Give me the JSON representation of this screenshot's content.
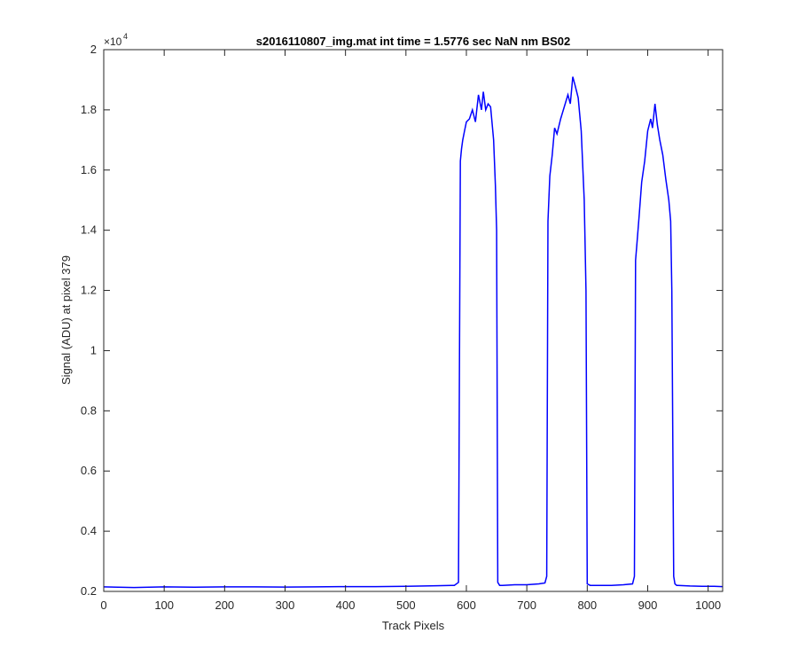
{
  "chart_data": {
    "type": "line",
    "title": "s2016110807_img.mat int time = 1.5776 sec  NaN nm BS02",
    "xlabel": "Track Pixels",
    "ylabel": "Signal (ADU) at pixel 379",
    "xlim": [
      0,
      1024
    ],
    "ylim": [
      2000,
      20000
    ],
    "x_ticks": [
      0,
      100,
      200,
      300,
      400,
      500,
      600,
      700,
      800,
      900,
      1000
    ],
    "y_ticks": [
      2000,
      4000,
      6000,
      8000,
      10000,
      12000,
      14000,
      16000,
      18000,
      20000
    ],
    "y_tick_labels": [
      "0.2",
      "0.4",
      "0.6",
      "0.8",
      "1",
      "1.2",
      "1.4",
      "1.6",
      "1.8",
      "2"
    ],
    "x_tick_labels": [
      "0",
      "100",
      "200",
      "300",
      "400",
      "500",
      "600",
      "700",
      "800",
      "900",
      "1000"
    ],
    "y_exponent": {
      "base": "×10",
      "power": "4"
    },
    "grid": false,
    "series": [
      {
        "color": "#0000ff",
        "x": [
          0,
          50,
          100,
          150,
          200,
          250,
          300,
          350,
          400,
          450,
          500,
          550,
          580,
          587,
          590,
          592,
          594,
          597,
          600,
          605,
          610,
          615,
          620,
          625,
          628,
          632,
          636,
          640,
          645,
          648,
          650,
          652,
          655,
          660,
          680,
          700,
          720,
          730,
          733,
          735,
          738,
          742,
          746,
          750,
          756,
          762,
          768,
          772,
          776,
          780,
          785,
          790,
          795,
          798,
          800,
          805,
          820,
          840,
          860,
          875,
          878,
          880,
          882,
          886,
          890,
          895,
          900,
          905,
          908,
          912,
          916,
          920,
          925,
          930,
          935,
          938,
          940,
          943,
          945,
          948,
          950,
          970,
          990,
          1010,
          1024
        ],
        "y": [
          2150,
          2130,
          2150,
          2140,
          2150,
          2150,
          2145,
          2150,
          2160,
          2160,
          2170,
          2190,
          2200,
          2300,
          16300,
          16700,
          17000,
          17300,
          17600,
          17700,
          18000,
          17600,
          18500,
          18000,
          18600,
          18000,
          18200,
          18100,
          17000,
          15500,
          14000,
          2300,
          2200,
          2200,
          2220,
          2220,
          2250,
          2280,
          2500,
          14300,
          15800,
          16500,
          17400,
          17200,
          17700,
          18100,
          18500,
          18200,
          19100,
          18800,
          18400,
          17300,
          15000,
          12000,
          2250,
          2200,
          2200,
          2200,
          2220,
          2250,
          2500,
          13000,
          13500,
          14500,
          15600,
          16300,
          17300,
          17700,
          17400,
          18200,
          17500,
          17000,
          16500,
          15700,
          15000,
          14300,
          12000,
          2500,
          2250,
          2200,
          2200,
          2180,
          2170,
          2170,
          2160
        ]
      }
    ]
  }
}
